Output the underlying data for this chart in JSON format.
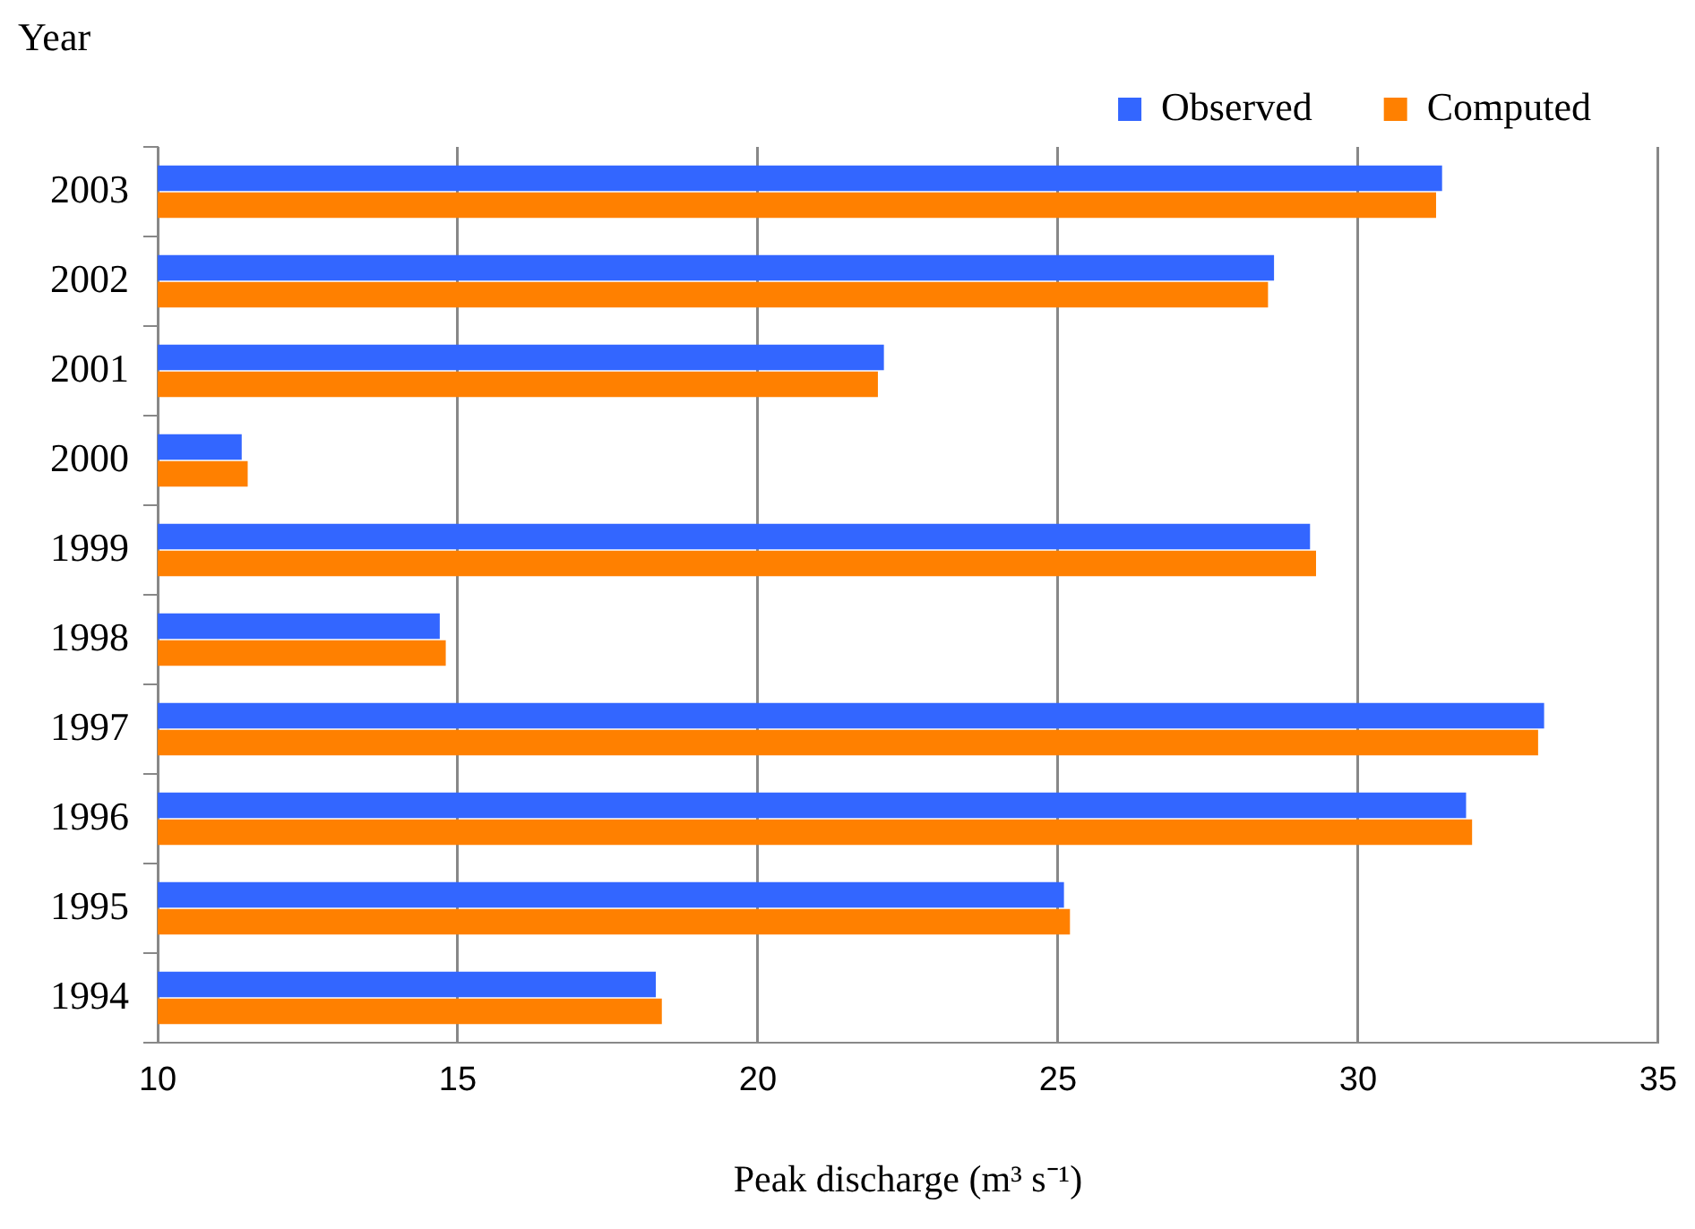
{
  "chart_data": {
    "type": "bar",
    "orientation": "horizontal",
    "xlabel": "Peak discharge (m³ s⁻¹)",
    "ylabel": "Year",
    "categories": [
      "2003",
      "2002",
      "2001",
      "2000",
      "1999",
      "1998",
      "1997",
      "1996",
      "1995",
      "1994"
    ],
    "series": [
      {
        "name": "Observed",
        "color": "#3366ff",
        "values": [
          31.4,
          28.6,
          22.1,
          11.4,
          29.2,
          14.7,
          33.1,
          31.8,
          25.1,
          18.3
        ]
      },
      {
        "name": "Computed",
        "color": "#ff8000",
        "values": [
          31.3,
          28.5,
          22.0,
          11.5,
          29.3,
          14.8,
          33.0,
          31.9,
          25.2,
          18.4
        ]
      }
    ],
    "xlim": [
      10,
      35
    ],
    "xticks": [
      10,
      15,
      20,
      25,
      30,
      35
    ],
    "grid": "x",
    "legend": "top right"
  }
}
